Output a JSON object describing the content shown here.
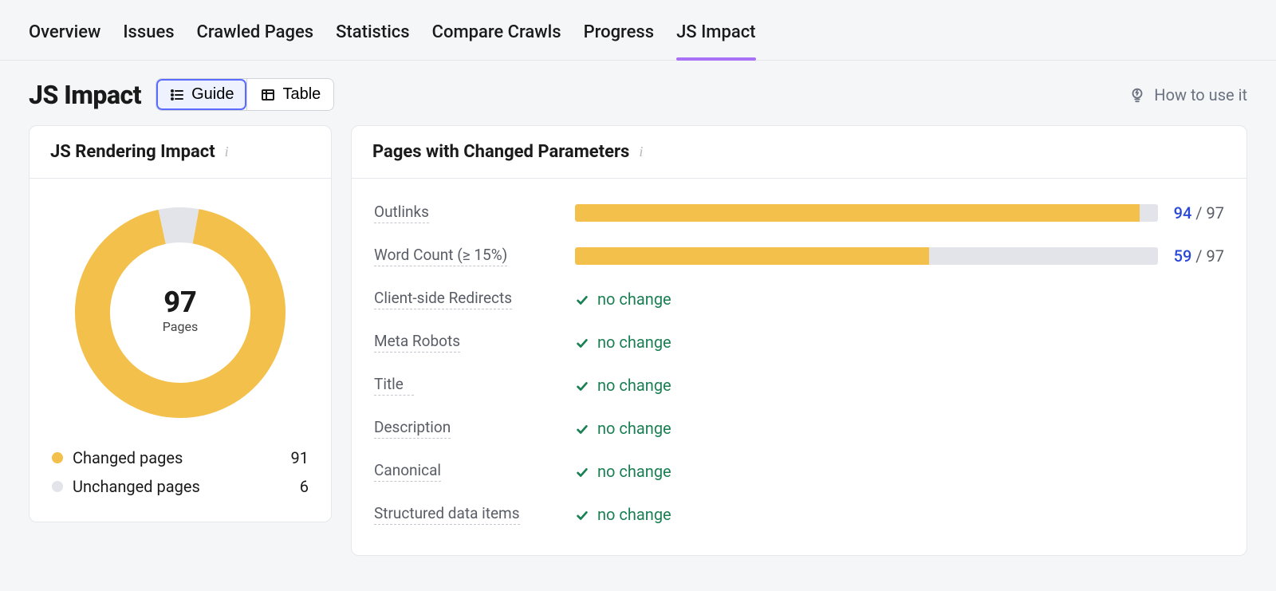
{
  "colors": {
    "accent_purple": "#a972f6",
    "bar_fill": "#f2c04b",
    "bar_bg": "#e3e4ea",
    "nochange_green": "#1a7f53",
    "value_blue": "#2b49d6",
    "muted": "#595d66",
    "donut_changed": "#f2c04b",
    "donut_unchanged": "#e3e4ea"
  },
  "tabs": [
    {
      "label": "Overview",
      "active": false
    },
    {
      "label": "Issues",
      "active": false
    },
    {
      "label": "Crawled Pages",
      "active": false
    },
    {
      "label": "Statistics",
      "active": false
    },
    {
      "label": "Compare Crawls",
      "active": false
    },
    {
      "label": "Progress",
      "active": false
    },
    {
      "label": "JS Impact",
      "active": true
    }
  ],
  "header": {
    "title": "JS Impact",
    "view_toggle": [
      {
        "key": "guide",
        "label": "Guide",
        "active": true,
        "icon": "list-icon"
      },
      {
        "key": "table",
        "label": "Table",
        "active": false,
        "icon": "table-icon"
      }
    ],
    "help_label": "How to use it"
  },
  "rendering_card": {
    "title": "JS Rendering Impact",
    "donut": {
      "total": 97,
      "total_label": "Pages",
      "segments": [
        {
          "key": "changed",
          "label": "Changed pages",
          "value": 91,
          "color": "#f2c04b"
        },
        {
          "key": "unchanged",
          "label": "Unchanged pages",
          "value": 6,
          "color": "#e3e4ea"
        }
      ],
      "stroke_width": 44,
      "radius": 110
    }
  },
  "params_card": {
    "title": "Pages with Changed Parameters",
    "total": 97,
    "rows": [
      {
        "label": "Outlinks",
        "type": "bar",
        "value": 94,
        "total": 97
      },
      {
        "label": "Word Count (≥ 15%)",
        "type": "bar",
        "value": 59,
        "total": 97
      },
      {
        "label": "Client-side Redirects",
        "type": "nochange",
        "text": "no change"
      },
      {
        "label": "Meta Robots",
        "type": "nochange",
        "text": "no change"
      },
      {
        "label": "Title",
        "type": "nochange",
        "text": "no change"
      },
      {
        "label": "Description",
        "type": "nochange",
        "text": "no change"
      },
      {
        "label": "Canonical",
        "type": "nochange",
        "text": "no change"
      },
      {
        "label": "Structured data items",
        "type": "nochange",
        "text": "no change"
      }
    ]
  }
}
